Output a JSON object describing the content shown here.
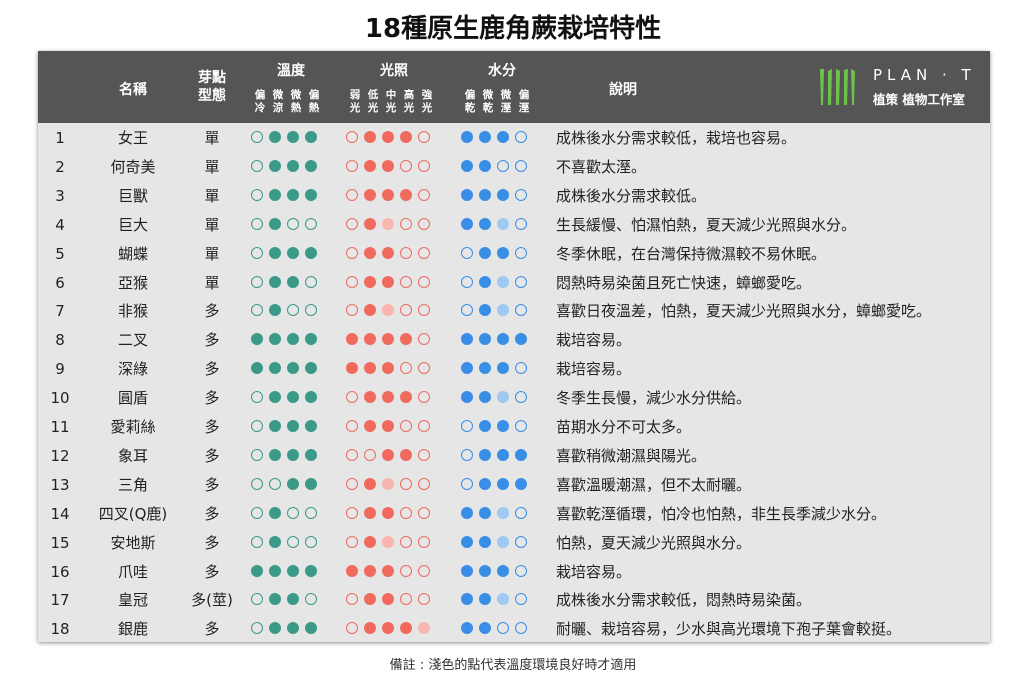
{
  "title": "18種原生鹿角蕨栽培特性",
  "header": {
    "name": "名稱",
    "type_l1": "芽點",
    "type_l2": "型態",
    "temp": "溫度",
    "temp_sub": [
      [
        "偏",
        "冷"
      ],
      [
        "微",
        "涼"
      ],
      [
        "微",
        "熱"
      ],
      [
        "偏",
        "熱"
      ]
    ],
    "light": "光照",
    "light_sub": [
      [
        "弱",
        "光"
      ],
      [
        "低",
        "光"
      ],
      [
        "中",
        "光"
      ],
      [
        "高",
        "光"
      ],
      [
        "強",
        "光"
      ]
    ],
    "water": "水分",
    "water_sub": [
      [
        "偏",
        "乾"
      ],
      [
        "微",
        "乾"
      ],
      [
        "微",
        "溼"
      ],
      [
        "偏",
        "溼"
      ]
    ],
    "desc": "說明"
  },
  "logo": {
    "brand": "PLAN · T",
    "subtitle": "植策 植物工作室",
    "color": "#6cc24a"
  },
  "colors": {
    "temp": "#3a9a87",
    "light": "#f06a5e",
    "light_pale": "#f9b5b0",
    "water": "#3a8ee6",
    "water_pale": "#9fc9f3",
    "header_bg": "#555555"
  },
  "legend_encoding": "0 = empty, 1 = pale, 2 = filled",
  "rows": [
    {
      "num": "1",
      "name": "女王",
      "type": "單",
      "temp": "0222",
      "light": "02220",
      "water": "2220",
      "desc": "成株後水分需求較低，栽培也容易。"
    },
    {
      "num": "2",
      "name": "何奇美",
      "type": "單",
      "temp": "0222",
      "light": "02200",
      "water": "2200",
      "desc": "不喜歡太溼。"
    },
    {
      "num": "3",
      "name": "巨獸",
      "type": "單",
      "temp": "0222",
      "light": "02220",
      "water": "2220",
      "desc": "成株後水分需求較低。"
    },
    {
      "num": "4",
      "name": "巨大",
      "type": "單",
      "temp": "0200",
      "light": "02100",
      "water": "2210",
      "desc": "生長緩慢、怕濕怕熱，夏天減少光照與水分。"
    },
    {
      "num": "5",
      "name": "蝴蝶",
      "type": "單",
      "temp": "0222",
      "light": "02200",
      "water": "0220",
      "desc": "冬季休眠，在台灣保持微濕較不易休眠。"
    },
    {
      "num": "6",
      "name": "亞猴",
      "type": "單",
      "temp": "0220",
      "light": "02200",
      "water": "0210",
      "desc": "悶熱時易染菌且死亡快速，蟑螂愛吃。"
    },
    {
      "num": "7",
      "name": "非猴",
      "type": "多",
      "temp": "0200",
      "light": "02100",
      "water": "0210",
      "desc": "喜歡日夜溫差，怕熱，夏天減少光照與水分，蟑螂愛吃。"
    },
    {
      "num": "8",
      "name": "二叉",
      "type": "多",
      "temp": "2222",
      "light": "22220",
      "water": "2222",
      "desc": "栽培容易。"
    },
    {
      "num": "9",
      "name": "深綠",
      "type": "多",
      "temp": "2222",
      "light": "22200",
      "water": "2220",
      "desc": "栽培容易。"
    },
    {
      "num": "10",
      "name": "圓盾",
      "type": "多",
      "temp": "0222",
      "light": "02220",
      "water": "2210",
      "desc": "冬季生長慢，減少水分供給。"
    },
    {
      "num": "11",
      "name": "愛莉絲",
      "type": "多",
      "temp": "0222",
      "light": "02200",
      "water": "0220",
      "desc": "苗期水分不可太多。"
    },
    {
      "num": "12",
      "name": "象耳",
      "type": "多",
      "temp": "0222",
      "light": "00220",
      "water": "0222",
      "desc": "喜歡稍微潮濕與陽光。"
    },
    {
      "num": "13",
      "name": "三角",
      "type": "多",
      "temp": "0022",
      "light": "02100",
      "water": "0222",
      "desc": "喜歡溫暖潮濕，但不太耐曬。"
    },
    {
      "num": "14",
      "name": "四叉(Q鹿)",
      "type": "多",
      "temp": "0200",
      "light": "02200",
      "water": "2210",
      "desc": "喜歡乾溼循環，怕冷也怕熱，非生長季減少水分。"
    },
    {
      "num": "15",
      "name": "安地斯",
      "type": "多",
      "temp": "0200",
      "light": "02100",
      "water": "2210",
      "desc": "怕熱，夏天減少光照與水分。"
    },
    {
      "num": "16",
      "name": "爪哇",
      "type": "多",
      "temp": "2222",
      "light": "22200",
      "water": "2220",
      "desc": "栽培容易。"
    },
    {
      "num": "17",
      "name": "皇冠",
      "type": "多(莖)",
      "temp": "0220",
      "light": "02200",
      "water": "2210",
      "desc": "成株後水分需求較低，悶熱時易染菌。"
    },
    {
      "num": "18",
      "name": "銀鹿",
      "type": "多",
      "temp": "0222",
      "light": "02221",
      "water": "2200",
      "desc": "耐曬、栽培容易，少水與高光環境下孢子葉會較挺。"
    }
  ],
  "note": "備註 : 淺色的點代表溫度環境良好時才適用"
}
